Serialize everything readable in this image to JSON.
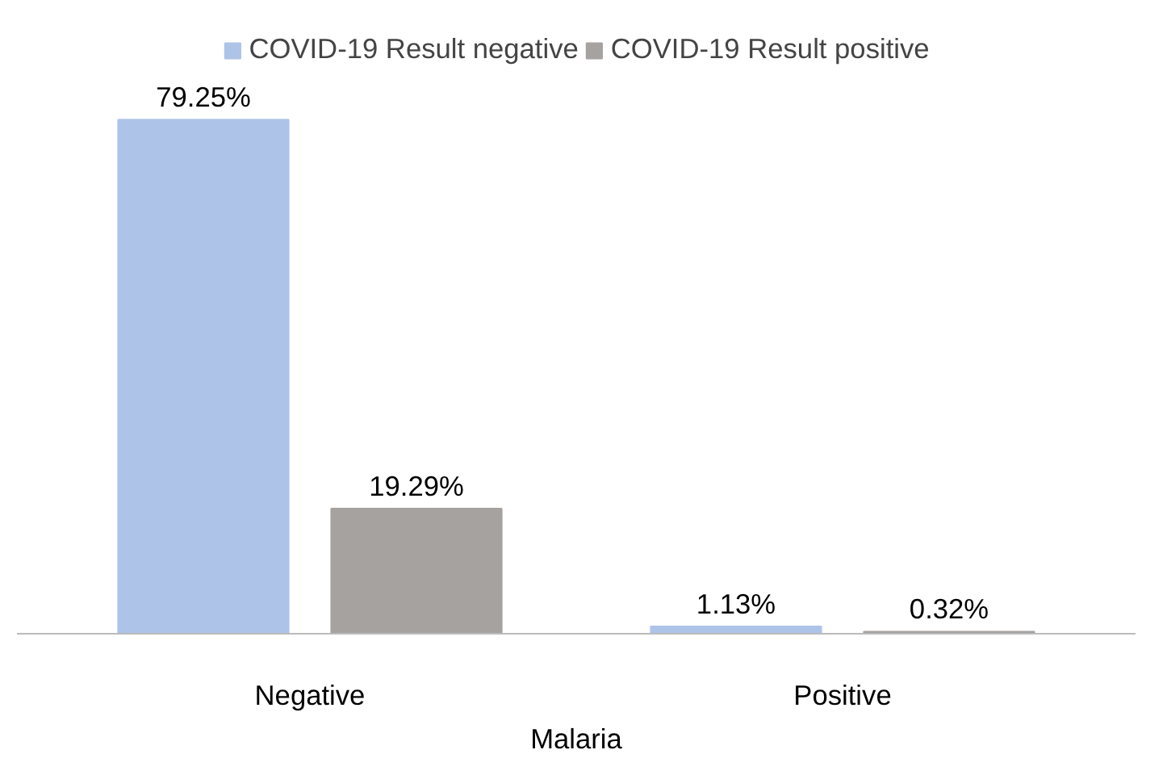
{
  "chart_data": {
    "type": "bar",
    "xlabel": "Malaria",
    "categories": [
      "Negative",
      "Positive"
    ],
    "series": [
      {
        "name": "COVID-19 Result negative",
        "color": "#aec3e8",
        "values": [
          79.25,
          1.13
        ],
        "value_labels": [
          "79.25%",
          "1.13%"
        ]
      },
      {
        "name": "COVID-19 Result positive",
        "color": "#a6a2a0",
        "values": [
          19.29,
          0.32
        ],
        "value_labels": [
          "19.29%",
          "0.32%"
        ]
      }
    ],
    "legend": "top",
    "grid": false
  }
}
